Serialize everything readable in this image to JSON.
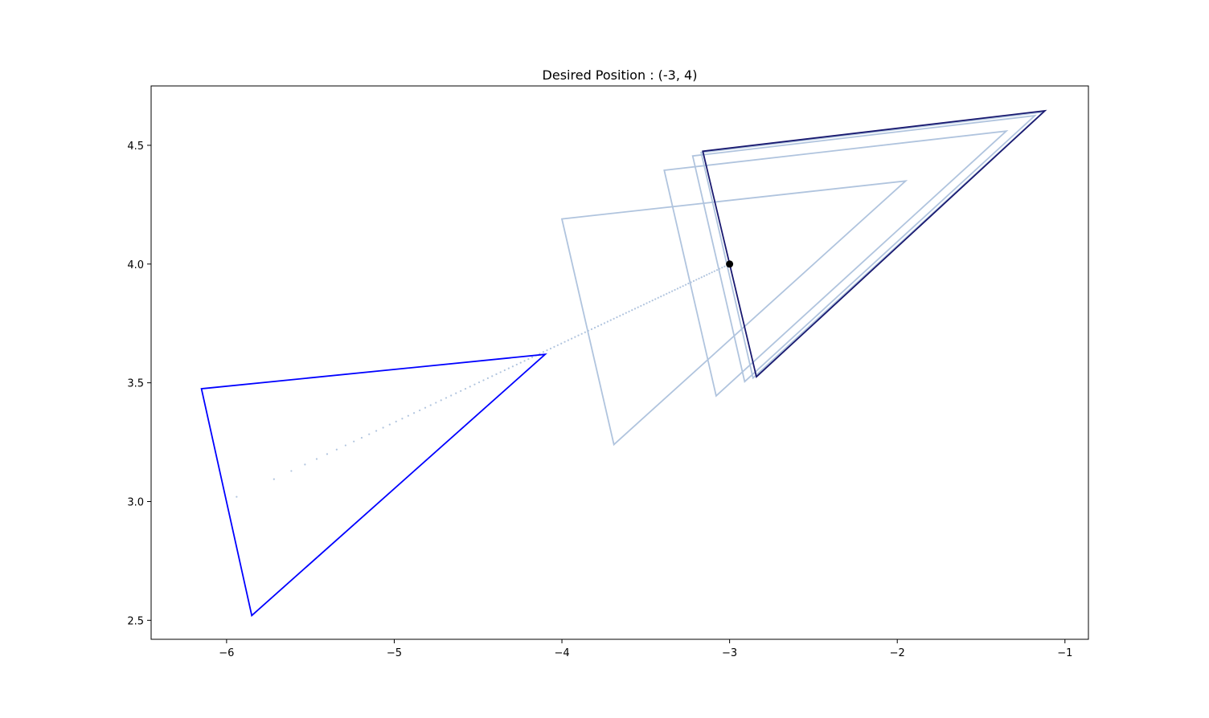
{
  "chart_data": {
    "type": "line",
    "title": "Desired Position : (-3, 4)",
    "xlabel": "",
    "ylabel": "",
    "xlim": [
      -6.45,
      -0.86
    ],
    "ylim": [
      2.42,
      4.75
    ],
    "x_ticks": [
      -6,
      -5,
      -4,
      -3,
      -2,
      -1
    ],
    "x_tick_labels": [
      "−6",
      "−5",
      "−4",
      "−3",
      "−2",
      "−1"
    ],
    "y_ticks": [
      2.5,
      3.0,
      3.5,
      4.0,
      4.5
    ],
    "y_tick_labels": [
      "2.5",
      "3.0",
      "3.5",
      "4.0",
      "4.5"
    ],
    "grid": false,
    "colors": {
      "initial": "#0000ff",
      "intermediate": "#b0c4de",
      "final": "#191970",
      "target": "#000000",
      "path": "#b0c4de"
    },
    "triangles": [
      {
        "name": "initial",
        "color": "#0000ff",
        "points": [
          [
            -6.15,
            3.475
          ],
          [
            -4.1,
            3.62
          ],
          [
            -5.85,
            2.52
          ]
        ]
      },
      {
        "name": "intermediate-1",
        "color": "#b0c4de",
        "points": [
          [
            -4.0,
            4.19
          ],
          [
            -1.95,
            4.35
          ],
          [
            -3.69,
            3.24
          ]
        ]
      },
      {
        "name": "intermediate-2",
        "color": "#b0c4de",
        "points": [
          [
            -3.39,
            4.395
          ],
          [
            -1.35,
            4.56
          ],
          [
            -3.08,
            3.445
          ]
        ]
      },
      {
        "name": "intermediate-3",
        "color": "#b0c4de",
        "points": [
          [
            -3.22,
            4.455
          ],
          [
            -1.18,
            4.625
          ],
          [
            -2.91,
            3.505
          ]
        ]
      },
      {
        "name": "intermediate-4",
        "color": "#b0c4de",
        "points": [
          [
            -3.17,
            4.47
          ],
          [
            -1.13,
            4.64
          ],
          [
            -2.86,
            3.52
          ]
        ]
      },
      {
        "name": "final",
        "color": "#191970",
        "points": [
          [
            -3.16,
            4.475
          ],
          [
            -1.12,
            4.645
          ],
          [
            -2.84,
            3.525
          ]
        ]
      }
    ],
    "path": {
      "start": [
        -5.94,
        3.02
      ],
      "end": [
        -3.0,
        4.0
      ],
      "count": 110
    },
    "target": {
      "x": -3,
      "y": 4
    }
  }
}
